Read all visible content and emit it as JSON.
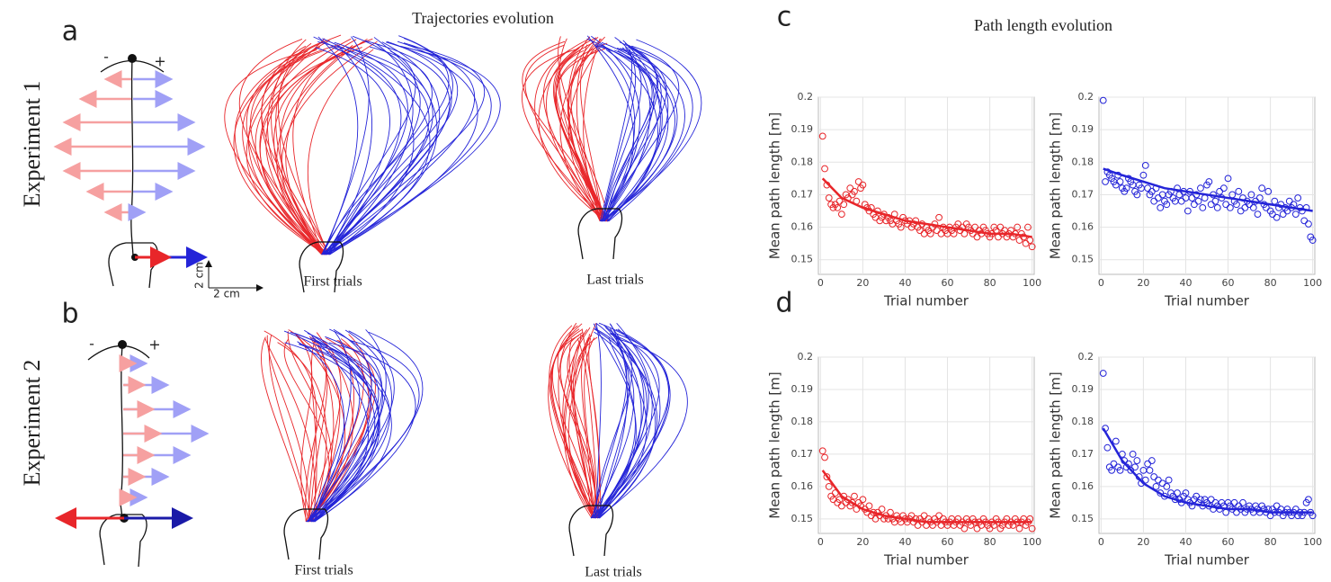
{
  "figure": {
    "title_left": "Trajectories evolution",
    "title_right": "Path length evolution",
    "panel_labels": [
      "a",
      "b",
      "c",
      "d"
    ],
    "experiments": [
      "Experiment 1",
      "Experiment 2"
    ],
    "trial_labels": [
      "First trials",
      "Last trials",
      "First trials",
      "Last trials"
    ],
    "scale_labels": [
      "2 cm",
      "2 cm"
    ],
    "signs": [
      "-",
      "+",
      "-",
      "+"
    ]
  },
  "chart_data": [
    {
      "type": "scatter",
      "ylabel": "Mean path length [m]",
      "xlabel": "Trial number",
      "xlim": [
        -1,
        101
      ],
      "ylim": [
        0.1455,
        0.2
      ],
      "xticks": [
        0,
        20,
        40,
        60,
        80,
        100
      ],
      "yticks": [
        0.15,
        0.16,
        0.17,
        0.18,
        0.19,
        0.2
      ],
      "grid": true,
      "series": [
        {
          "type": "scatter",
          "color": "#e8262a",
          "x": [
            1,
            2,
            3,
            4,
            5,
            6,
            7,
            8,
            9,
            10,
            11,
            12,
            13,
            14,
            15,
            16,
            17,
            18,
            19,
            20,
            21,
            22,
            23,
            24,
            25,
            26,
            27,
            28,
            29,
            30,
            31,
            32,
            33,
            34,
            35,
            36,
            37,
            38,
            39,
            40,
            41,
            42,
            43,
            44,
            45,
            46,
            47,
            48,
            49,
            50,
            51,
            52,
            53,
            54,
            55,
            56,
            57,
            58,
            59,
            60,
            61,
            62,
            63,
            64,
            65,
            66,
            67,
            68,
            69,
            70,
            71,
            72,
            73,
            74,
            75,
            76,
            77,
            78,
            79,
            80,
            81,
            82,
            83,
            84,
            85,
            86,
            87,
            88,
            89,
            90,
            91,
            92,
            93,
            94,
            95,
            96,
            97,
            98,
            99,
            100
          ],
          "values": [
            0.188,
            0.178,
            0.173,
            0.169,
            0.167,
            0.166,
            0.167,
            0.166,
            0.168,
            0.164,
            0.167,
            0.17,
            0.169,
            0.172,
            0.17,
            0.171,
            0.168,
            0.174,
            0.172,
            0.173,
            0.167,
            0.166,
            0.165,
            0.166,
            0.164,
            0.163,
            0.165,
            0.162,
            0.163,
            0.164,
            0.162,
            0.163,
            0.162,
            0.161,
            0.164,
            0.162,
            0.161,
            0.16,
            0.163,
            0.162,
            0.161,
            0.162,
            0.16,
            0.161,
            0.162,
            0.16,
            0.159,
            0.161,
            0.158,
            0.16,
            0.159,
            0.158,
            0.16,
            0.161,
            0.159,
            0.163,
            0.158,
            0.16,
            0.159,
            0.158,
            0.16,
            0.159,
            0.158,
            0.16,
            0.161,
            0.159,
            0.16,
            0.158,
            0.161,
            0.16,
            0.159,
            0.158,
            0.16,
            0.157,
            0.159,
            0.158,
            0.16,
            0.159,
            0.158,
            0.157,
            0.158,
            0.16,
            0.159,
            0.157,
            0.16,
            0.158,
            0.159,
            0.157,
            0.158,
            0.159,
            0.157,
            0.158,
            0.16,
            0.156,
            0.158,
            0.157,
            0.155,
            0.16,
            0.156,
            0.154
          ]
        },
        {
          "type": "line",
          "color": "#e8262a",
          "x": [
            1,
            10,
            20,
            30,
            40,
            50,
            60,
            70,
            80,
            90,
            100
          ],
          "values": [
            0.175,
            0.169,
            0.166,
            0.164,
            0.162,
            0.161,
            0.16,
            0.159,
            0.158,
            0.158,
            0.157
          ]
        }
      ]
    },
    {
      "type": "scatter",
      "ylabel": "Mean path length [m]",
      "xlabel": "Trial number",
      "xlim": [
        -1,
        101
      ],
      "ylim": [
        0.1455,
        0.2
      ],
      "xticks": [
        0,
        20,
        40,
        60,
        80,
        100
      ],
      "yticks": [
        0.15,
        0.16,
        0.17,
        0.18,
        0.19,
        0.2
      ],
      "grid": true,
      "series": [
        {
          "type": "scatter",
          "color": "#2424d8",
          "x": [
            1,
            2,
            3,
            4,
            5,
            6,
            7,
            8,
            9,
            10,
            11,
            12,
            13,
            14,
            15,
            16,
            17,
            18,
            19,
            20,
            21,
            22,
            23,
            24,
            25,
            26,
            27,
            28,
            29,
            30,
            31,
            32,
            33,
            34,
            35,
            36,
            37,
            38,
            39,
            40,
            41,
            42,
            43,
            44,
            45,
            46,
            47,
            48,
            49,
            50,
            51,
            52,
            53,
            54,
            55,
            56,
            57,
            58,
            59,
            60,
            61,
            62,
            63,
            64,
            65,
            66,
            67,
            68,
            69,
            70,
            71,
            72,
            73,
            74,
            75,
            76,
            77,
            78,
            79,
            80,
            81,
            82,
            83,
            84,
            85,
            86,
            87,
            88,
            89,
            90,
            91,
            92,
            93,
            94,
            95,
            96,
            97,
            98,
            99,
            100
          ],
          "values": [
            0.199,
            0.174,
            0.177,
            0.176,
            0.175,
            0.174,
            0.173,
            0.176,
            0.174,
            0.172,
            0.171,
            0.172,
            0.175,
            0.174,
            0.173,
            0.171,
            0.17,
            0.173,
            0.172,
            0.176,
            0.179,
            0.172,
            0.17,
            0.171,
            0.168,
            0.172,
            0.169,
            0.166,
            0.17,
            0.168,
            0.167,
            0.17,
            0.171,
            0.169,
            0.168,
            0.172,
            0.17,
            0.168,
            0.171,
            0.169,
            0.165,
            0.171,
            0.169,
            0.167,
            0.17,
            0.168,
            0.172,
            0.166,
            0.169,
            0.173,
            0.174,
            0.167,
            0.17,
            0.168,
            0.166,
            0.171,
            0.169,
            0.172,
            0.167,
            0.175,
            0.166,
            0.17,
            0.168,
            0.167,
            0.171,
            0.165,
            0.169,
            0.166,
            0.168,
            0.167,
            0.17,
            0.166,
            0.168,
            0.164,
            0.169,
            0.172,
            0.167,
            0.166,
            0.171,
            0.165,
            0.164,
            0.168,
            0.163,
            0.166,
            0.167,
            0.164,
            0.166,
            0.165,
            0.168,
            0.166,
            0.167,
            0.164,
            0.169,
            0.166,
            0.165,
            0.162,
            0.166,
            0.161,
            0.157,
            0.156
          ]
        },
        {
          "type": "line",
          "color": "#2424d8",
          "x": [
            1,
            10,
            20,
            30,
            40,
            50,
            60,
            70,
            80,
            90,
            100
          ],
          "values": [
            0.178,
            0.176,
            0.174,
            0.172,
            0.171,
            0.17,
            0.169,
            0.168,
            0.167,
            0.166,
            0.165
          ]
        }
      ]
    },
    {
      "type": "scatter",
      "ylabel": "Mean path length [m]",
      "xlabel": "Trial number",
      "xlim": [
        -1,
        101
      ],
      "ylim": [
        0.1455,
        0.2
      ],
      "xticks": [
        0,
        20,
        40,
        60,
        80,
        100
      ],
      "yticks": [
        0.15,
        0.16,
        0.17,
        0.18,
        0.19,
        0.2
      ],
      "grid": true,
      "series": [
        {
          "type": "scatter",
          "color": "#e8262a",
          "x": [
            1,
            2,
            3,
            4,
            5,
            6,
            7,
            8,
            9,
            10,
            11,
            12,
            13,
            14,
            15,
            16,
            17,
            18,
            19,
            20,
            21,
            22,
            23,
            24,
            25,
            26,
            27,
            28,
            29,
            30,
            31,
            32,
            33,
            34,
            35,
            36,
            37,
            38,
            39,
            40,
            41,
            42,
            43,
            44,
            45,
            46,
            47,
            48,
            49,
            50,
            51,
            52,
            53,
            54,
            55,
            56,
            57,
            58,
            59,
            60,
            61,
            62,
            63,
            64,
            65,
            66,
            67,
            68,
            69,
            70,
            71,
            72,
            73,
            74,
            75,
            76,
            77,
            78,
            79,
            80,
            81,
            82,
            83,
            84,
            85,
            86,
            87,
            88,
            89,
            90,
            91,
            92,
            93,
            94,
            95,
            96,
            97,
            98,
            99,
            100
          ],
          "values": [
            0.171,
            0.169,
            0.163,
            0.16,
            0.157,
            0.156,
            0.158,
            0.155,
            0.156,
            0.154,
            0.157,
            0.155,
            0.156,
            0.154,
            0.155,
            0.157,
            0.153,
            0.155,
            0.154,
            0.156,
            0.153,
            0.152,
            0.154,
            0.151,
            0.152,
            0.15,
            0.152,
            0.151,
            0.153,
            0.15,
            0.151,
            0.15,
            0.152,
            0.15,
            0.149,
            0.151,
            0.15,
            0.149,
            0.151,
            0.15,
            0.149,
            0.15,
            0.151,
            0.149,
            0.15,
            0.148,
            0.15,
            0.149,
            0.151,
            0.148,
            0.15,
            0.149,
            0.148,
            0.15,
            0.149,
            0.151,
            0.148,
            0.15,
            0.149,
            0.148,
            0.149,
            0.15,
            0.148,
            0.149,
            0.15,
            0.148,
            0.149,
            0.147,
            0.15,
            0.149,
            0.148,
            0.15,
            0.149,
            0.147,
            0.149,
            0.148,
            0.15,
            0.149,
            0.148,
            0.147,
            0.149,
            0.148,
            0.15,
            0.149,
            0.147,
            0.148,
            0.149,
            0.15,
            0.148,
            0.149,
            0.148,
            0.15,
            0.149,
            0.147,
            0.149,
            0.15,
            0.148,
            0.149,
            0.15,
            0.147
          ]
        },
        {
          "type": "line",
          "color": "#e8262a",
          "x": [
            1,
            10,
            20,
            30,
            40,
            50,
            60,
            70,
            80,
            90,
            100
          ],
          "values": [
            0.165,
            0.157,
            0.153,
            0.151,
            0.15,
            0.149,
            0.149,
            0.149,
            0.149,
            0.149,
            0.149
          ]
        }
      ]
    },
    {
      "type": "scatter",
      "ylabel": "Mean path length [m]",
      "xlabel": "Trial number",
      "xlim": [
        -1,
        101
      ],
      "ylim": [
        0.1455,
        0.2
      ],
      "xticks": [
        0,
        20,
        40,
        60,
        80,
        100
      ],
      "yticks": [
        0.15,
        0.16,
        0.17,
        0.18,
        0.19,
        0.2
      ],
      "grid": true,
      "series": [
        {
          "type": "scatter",
          "color": "#2424d8",
          "x": [
            1,
            2,
            3,
            4,
            5,
            6,
            7,
            8,
            9,
            10,
            11,
            12,
            13,
            14,
            15,
            16,
            17,
            18,
            19,
            20,
            21,
            22,
            23,
            24,
            25,
            26,
            27,
            28,
            29,
            30,
            31,
            32,
            33,
            34,
            35,
            36,
            37,
            38,
            39,
            40,
            41,
            42,
            43,
            44,
            45,
            46,
            47,
            48,
            49,
            50,
            51,
            52,
            53,
            54,
            55,
            56,
            57,
            58,
            59,
            60,
            61,
            62,
            63,
            64,
            65,
            66,
            67,
            68,
            69,
            70,
            71,
            72,
            73,
            74,
            75,
            76,
            77,
            78,
            79,
            80,
            81,
            82,
            83,
            84,
            85,
            86,
            87,
            88,
            89,
            90,
            91,
            92,
            93,
            94,
            95,
            96,
            97,
            98,
            99,
            100
          ],
          "values": [
            0.195,
            0.178,
            0.172,
            0.166,
            0.165,
            0.167,
            0.174,
            0.166,
            0.165,
            0.17,
            0.168,
            0.166,
            0.167,
            0.165,
            0.17,
            0.166,
            0.168,
            0.163,
            0.161,
            0.165,
            0.162,
            0.167,
            0.165,
            0.168,
            0.163,
            0.16,
            0.162,
            0.158,
            0.161,
            0.157,
            0.16,
            0.162,
            0.158,
            0.157,
            0.156,
            0.158,
            0.156,
            0.155,
            0.157,
            0.158,
            0.156,
            0.155,
            0.154,
            0.156,
            0.157,
            0.155,
            0.156,
            0.154,
            0.156,
            0.155,
            0.154,
            0.156,
            0.153,
            0.155,
            0.154,
            0.153,
            0.155,
            0.154,
            0.152,
            0.155,
            0.154,
            0.153,
            0.155,
            0.152,
            0.154,
            0.153,
            0.155,
            0.152,
            0.153,
            0.154,
            0.153,
            0.152,
            0.154,
            0.153,
            0.152,
            0.154,
            0.153,
            0.152,
            0.153,
            0.151,
            0.153,
            0.152,
            0.154,
            0.152,
            0.153,
            0.151,
            0.152,
            0.153,
            0.152,
            0.151,
            0.152,
            0.153,
            0.151,
            0.152,
            0.151,
            0.152,
            0.155,
            0.156,
            0.152,
            0.151
          ]
        },
        {
          "type": "line",
          "color": "#2424d8",
          "x": [
            1,
            10,
            20,
            30,
            40,
            50,
            60,
            70,
            80,
            90,
            100
          ],
          "values": [
            0.178,
            0.168,
            0.161,
            0.157,
            0.155,
            0.154,
            0.153,
            0.153,
            0.152,
            0.152,
            0.152
          ]
        }
      ]
    }
  ]
}
